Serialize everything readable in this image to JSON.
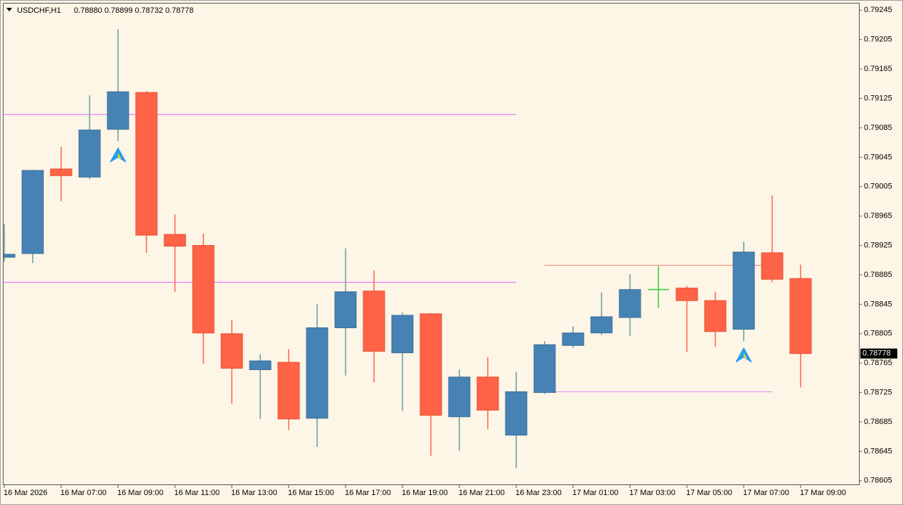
{
  "chart_data": {
    "type": "candlestick",
    "title": "USDCHF,H1",
    "subtitle": "0.78880 0.78899 0.78732 0.78778",
    "categories": [
      "16 Mar 2026",
      null,
      "16 Mar 07:00",
      null,
      "16 Mar 09:00",
      null,
      "16 Mar 11:00",
      null,
      "16 Mar 13:00",
      null,
      "16 Mar 15:00",
      null,
      "16 Mar 17:00",
      null,
      "16 Mar 19:00",
      null,
      "16 Mar 21:00",
      null,
      "16 Mar 23:00",
      null,
      "17 Mar 01:00",
      null,
      "17 Mar 03:00",
      null,
      "17 Mar 05:00",
      null,
      "17 Mar 07:00",
      null,
      "17 Mar 09:00"
    ],
    "open": [
      0.78909,
      0.78914,
      0.79029,
      0.79018,
      0.79083,
      0.79133,
      0.7894,
      0.78925,
      0.78805,
      0.78756,
      0.78766,
      0.7869,
      0.78813,
      0.78863,
      0.78779,
      0.78832,
      0.78692,
      0.78746,
      0.78667,
      0.78725,
      0.78789,
      0.78806,
      0.78827,
      0.78865,
      0.78867,
      0.7885,
      0.78811,
      0.78915,
      0.7888
    ],
    "high": [
      0.78954,
      0.79028,
      0.79059,
      0.79129,
      0.79219,
      0.79135,
      0.78967,
      0.78941,
      0.78824,
      0.78777,
      0.78784,
      0.78845,
      0.78921,
      0.78891,
      0.78834,
      0.78833,
      0.78756,
      0.78773,
      0.78753,
      0.78795,
      0.78815,
      0.78861,
      0.78886,
      0.78897,
      0.7887,
      0.78862,
      0.7893,
      0.78993,
      0.78899
    ],
    "low": [
      0.78903,
      0.78901,
      0.78985,
      0.79015,
      0.79067,
      0.78915,
      0.78862,
      0.78764,
      0.7871,
      0.78689,
      0.78674,
      0.78651,
      0.78748,
      0.78739,
      0.787,
      0.78639,
      0.78646,
      0.78675,
      0.78622,
      0.78723,
      0.78786,
      0.78803,
      0.78802,
      0.7884,
      0.7878,
      0.78787,
      0.78795,
      0.78875,
      0.78732
    ],
    "close": [
      0.78913,
      0.79027,
      0.7902,
      0.79082,
      0.79134,
      0.78939,
      0.78924,
      0.78806,
      0.78758,
      0.78768,
      0.78689,
      0.78813,
      0.78862,
      0.78781,
      0.7883,
      0.78694,
      0.78746,
      0.78701,
      0.78726,
      0.7879,
      0.78806,
      0.78828,
      0.78865,
      0.78865,
      0.7885,
      0.78808,
      0.78916,
      0.78879,
      0.78778
    ],
    "up_color": "#4682b4",
    "down_color": "#ff6347",
    "doji_color": "#32cd32",
    "wick_up_color": "#5f9ea0",
    "levels": [
      {
        "value": 0.79103,
        "start": 0,
        "end": 18,
        "color": "#e066ff"
      },
      {
        "value": 0.78875,
        "start": 0,
        "end": 18,
        "color": "#e066ff"
      },
      {
        "value": 0.78898,
        "start": 19,
        "end": 27,
        "color": "#fa8072"
      },
      {
        "value": 0.78726,
        "start": 19,
        "end": 27,
        "color": "#ee82ee"
      }
    ],
    "signals": [
      {
        "index": 4,
        "value": 0.79048
      },
      {
        "index": 26,
        "value": 0.78776
      }
    ],
    "last_price": 0.78778,
    "ylim": [
      0.786,
      0.79254
    ],
    "yticks": [
      0.79245,
      0.79205,
      0.79165,
      0.79125,
      0.79085,
      0.79045,
      0.79005,
      0.78965,
      0.78925,
      0.78885,
      0.78845,
      0.78805,
      0.78765,
      0.78725,
      0.78685,
      0.78645,
      0.78605
    ]
  }
}
